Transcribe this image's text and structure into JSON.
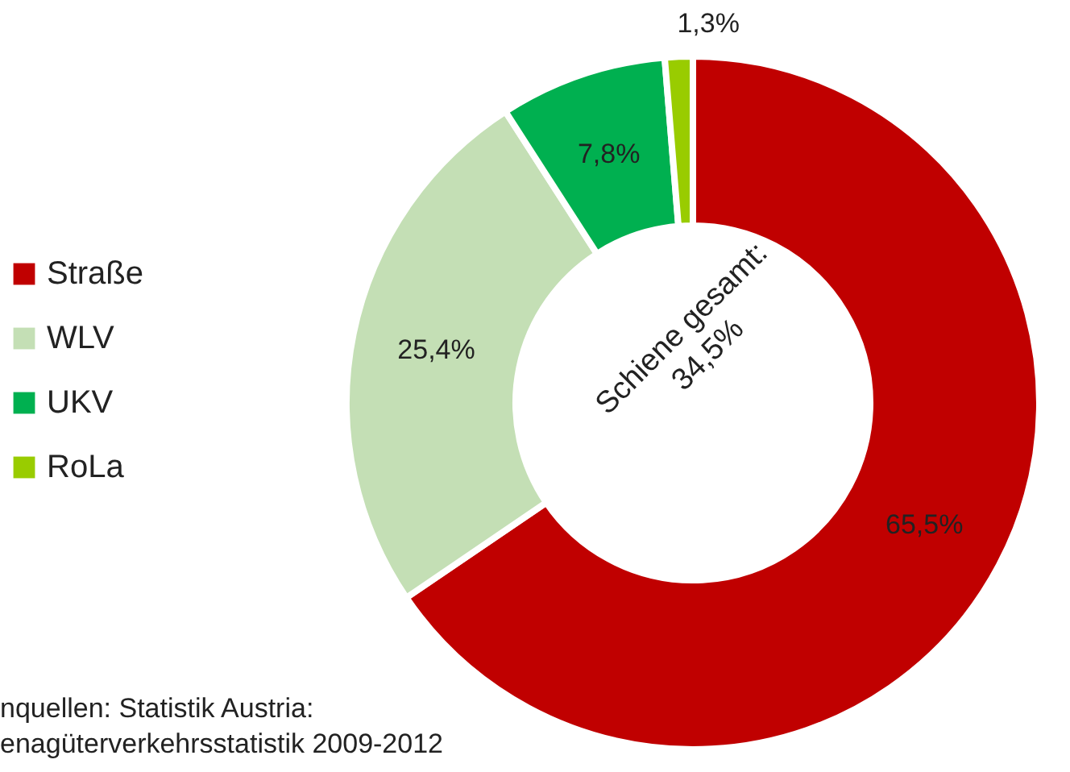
{
  "chart_data": {
    "type": "donut",
    "categories": [
      "Straße",
      "WLV",
      "UKV",
      "RoLa"
    ],
    "values": [
      65.5,
      25.4,
      7.8,
      1.3
    ],
    "colors": [
      "#c00000",
      "#c4dfb5",
      "#00b050",
      "#99cc00"
    ],
    "value_labels": [
      "65,5%",
      "25,4%",
      "7,8%",
      "1,3%"
    ],
    "legend": "left",
    "annotations": [
      "Schiene gesamt: 34,5%",
      "nquellen: Statistik Austria:",
      "enagüterverkehrsstatistik 2009-2012"
    ]
  }
}
